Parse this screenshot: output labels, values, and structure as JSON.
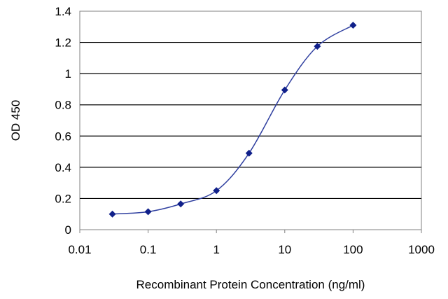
{
  "chart_data": {
    "type": "line",
    "title": "",
    "xlabel": "Recombinant Protein Concentration (ng/ml)",
    "ylabel": "OD 450",
    "xscale": "log",
    "xlim": [
      0.01,
      1000
    ],
    "ylim": [
      0,
      1.4
    ],
    "grid": "horizontal",
    "legend": "none",
    "x_ticks": [
      "0.01",
      "0.1",
      "1",
      "10",
      "100",
      "1000"
    ],
    "y_ticks": [
      "0",
      "0.2",
      "0.4",
      "0.6",
      "0.8",
      "1",
      "1.2",
      "1.4"
    ],
    "series": [
      {
        "x": [
          0.03,
          0.1,
          0.3,
          1,
          3,
          10,
          30,
          100
        ],
        "y": [
          0.1,
          0.115,
          0.165,
          0.25,
          0.49,
          0.895,
          1.175,
          1.31
        ],
        "color": "#3040a0",
        "marker_color": "#10208a"
      }
    ]
  }
}
